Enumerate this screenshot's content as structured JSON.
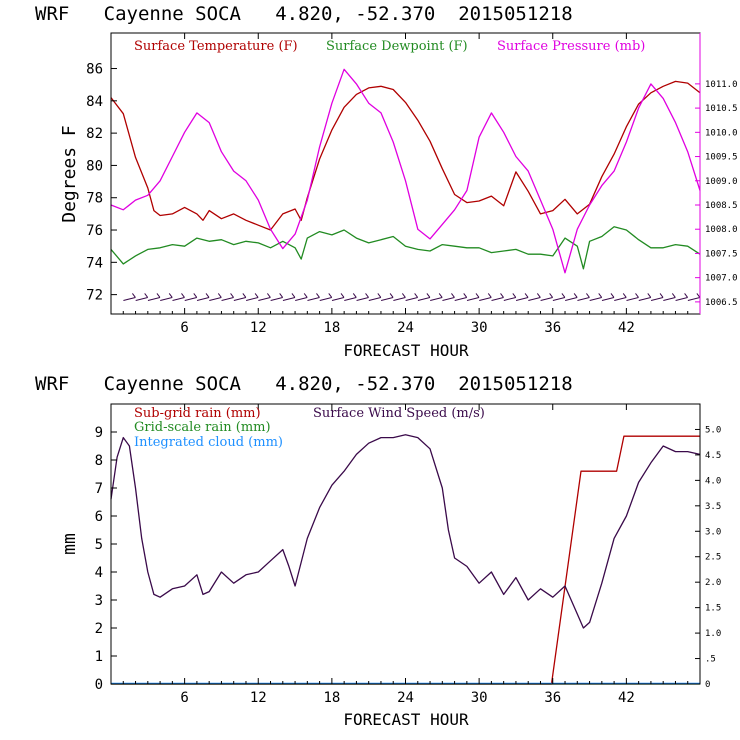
{
  "colors": {
    "temperature": "#b00000",
    "dewpoint": "#228b22",
    "pressure": "#e000e0",
    "wind": "#3a0a4a",
    "subgrid_rain": "#b00000",
    "grid_rain": "#228b22",
    "cloud": "#1e90ff"
  },
  "chart_data": [
    {
      "type": "line",
      "title": "WRF   Cayenne SOCA   4.820, -52.370  2015051218",
      "xlabel": "FORECAST HOUR",
      "ylabel": "Degrees F",
      "xlim": [
        0,
        48
      ],
      "ylim": [
        70.8,
        88.2
      ],
      "xticks": [
        6,
        12,
        18,
        24,
        30,
        36,
        42
      ],
      "yticks": [
        72,
        74,
        76,
        78,
        80,
        82,
        84,
        86
      ],
      "y2lim": [
        1006.25,
        1012.05
      ],
      "y2ticks": [
        1006.5,
        1007.0,
        1007.5,
        1008.0,
        1008.5,
        1009.0,
        1009.5,
        1010.0,
        1010.5,
        1011.0
      ],
      "y2ticklabels": [
        "1006.5",
        "1007.0",
        "1007.5",
        "1008.0",
        "1008.5",
        "1009.0",
        "1009.5",
        "1010.0",
        "1010.5",
        "1011.0"
      ],
      "legend": [
        "Surface Temperature (F)",
        "Surface Dewpoint (F)",
        "Surface Pressure (mb)"
      ],
      "series": [
        {
          "name": "Surface Temperature (F)",
          "axis": "left",
          "x": [
            0,
            1,
            2,
            3,
            3.5,
            4,
            5,
            6,
            7,
            7.5,
            8,
            9,
            10,
            11,
            12,
            13,
            14,
            15,
            15.5,
            16,
            17,
            18,
            19,
            20,
            21,
            22,
            23,
            24,
            25,
            26,
            27,
            28,
            29,
            30,
            31,
            32,
            33,
            34,
            35,
            36,
            37,
            38,
            39,
            40,
            41,
            42,
            43,
            44,
            45,
            46,
            47,
            48
          ],
          "y": [
            84.2,
            83.2,
            80.5,
            78.6,
            77.2,
            76.9,
            77.0,
            77.4,
            77.0,
            76.6,
            77.2,
            76.7,
            77.0,
            76.6,
            76.3,
            76.0,
            77.0,
            77.3,
            76.6,
            78.0,
            80.4,
            82.2,
            83.6,
            84.4,
            84.8,
            84.9,
            84.7,
            83.9,
            82.8,
            81.5,
            79.8,
            78.2,
            77.7,
            77.8,
            78.1,
            77.5,
            79.6,
            78.4,
            77.0,
            77.2,
            77.9,
            77.0,
            77.6,
            79.3,
            80.7,
            82.4,
            83.8,
            84.5,
            84.9,
            85.2,
            85.1,
            84.5
          ]
        },
        {
          "name": "Surface Dewpoint (F)",
          "axis": "left",
          "x": [
            0,
            1,
            2,
            3,
            4,
            5,
            6,
            7,
            8,
            9,
            10,
            11,
            12,
            13,
            14,
            15,
            15.5,
            16,
            17,
            18,
            19,
            20,
            21,
            22,
            23,
            24,
            25,
            26,
            27,
            28,
            29,
            30,
            31,
            32,
            33,
            34,
            35,
            36,
            37,
            38,
            38.5,
            39,
            40,
            41,
            42,
            43,
            44,
            45,
            46,
            47,
            48
          ],
          "y": [
            74.8,
            73.9,
            74.4,
            74.8,
            74.9,
            75.1,
            75.0,
            75.5,
            75.3,
            75.4,
            75.1,
            75.3,
            75.2,
            74.9,
            75.3,
            74.9,
            74.2,
            75.5,
            75.9,
            75.7,
            76.0,
            75.5,
            75.2,
            75.4,
            75.6,
            75.0,
            74.8,
            74.7,
            75.1,
            75.0,
            74.9,
            74.9,
            74.6,
            74.7,
            74.8,
            74.5,
            74.5,
            74.4,
            75.5,
            75.0,
            73.6,
            75.3,
            75.6,
            76.2,
            76.0,
            75.4,
            74.9,
            74.9,
            75.1,
            75.0,
            74.5
          ]
        },
        {
          "name": "Surface Pressure (mb)",
          "axis": "right",
          "x": [
            0,
            1,
            2,
            3,
            4,
            5,
            6,
            7,
            8,
            9,
            10,
            11,
            12,
            13,
            14,
            15,
            16,
            17,
            18,
            19,
            20,
            21,
            22,
            23,
            24,
            25,
            26,
            27,
            28,
            29,
            30,
            31,
            32,
            33,
            34,
            35,
            36,
            37,
            38,
            39,
            40,
            41,
            42,
            43,
            44,
            45,
            46,
            47,
            48
          ],
          "y": [
            1008.5,
            1008.4,
            1008.6,
            1008.7,
            1009.0,
            1009.5,
            1010.0,
            1010.4,
            1010.2,
            1009.6,
            1009.2,
            1009.0,
            1008.6,
            1008.0,
            1007.6,
            1007.9,
            1008.6,
            1009.7,
            1010.6,
            1011.3,
            1011.0,
            1010.6,
            1010.4,
            1009.8,
            1009.0,
            1008.0,
            1007.8,
            1008.1,
            1008.4,
            1008.8,
            1009.9,
            1010.4,
            1010.0,
            1009.5,
            1009.2,
            1008.6,
            1008.0,
            1007.1,
            1008.0,
            1008.5,
            1008.9,
            1009.2,
            1009.8,
            1010.5,
            1011.0,
            1010.7,
            1010.2,
            1009.6,
            1008.8
          ]
        }
      ]
    },
    {
      "type": "line",
      "title": "WRF   Cayenne SOCA   4.820, -52.370  2015051218",
      "xlabel": "FORECAST HOUR",
      "ylabel": "mm",
      "xlim": [
        0,
        48
      ],
      "ylim": [
        0,
        10
      ],
      "xticks": [
        6,
        12,
        18,
        24,
        30,
        36,
        42
      ],
      "yticks": [
        0,
        1,
        2,
        3,
        4,
        5,
        6,
        7,
        8,
        9
      ],
      "y2lim": [
        0,
        5.5
      ],
      "y2ticks": [
        0,
        0.5,
        1.0,
        1.5,
        2.0,
        2.5,
        3.0,
        3.5,
        4.0,
        4.5,
        5.0
      ],
      "y2ticklabels": [
        "0",
        ".5",
        "1.0",
        "1.5",
        "2.0",
        "2.5",
        "3.0",
        "3.5",
        "4.0",
        "4.5",
        "5.0"
      ],
      "legend": [
        "Sub-grid rain (mm)",
        "Grid-scale rain (mm)",
        "Integrated cloud (mm)",
        "Surface Wind Speed (m/s)"
      ],
      "series": [
        {
          "name": "Sub-grid rain (mm)",
          "axis": "left",
          "x": [
            0,
            35.9,
            38.3,
            41.2,
            41.8,
            48
          ],
          "y": [
            0,
            0,
            7.6,
            7.6,
            8.85,
            8.85
          ]
        },
        {
          "name": "Grid-scale rain (mm)",
          "axis": "left",
          "x": [
            0,
            48
          ],
          "y": [
            0,
            0
          ]
        },
        {
          "name": "Integrated cloud (mm)",
          "axis": "left",
          "x": [
            0,
            48
          ],
          "y": [
            0.02,
            0.02
          ]
        },
        {
          "name": "Surface Wind Speed (m/s)",
          "axis": "left",
          "x": [
            0,
            0.5,
            1,
            1.5,
            2,
            2.5,
            3,
            3.5,
            4,
            5,
            6,
            7,
            7.5,
            8,
            9,
            10,
            11,
            12,
            13,
            14,
            14.5,
            15,
            16,
            17,
            18,
            19,
            20,
            21,
            22,
            23,
            24,
            25,
            26,
            27,
            27.5,
            28,
            29,
            30,
            31,
            32,
            33,
            34,
            35,
            36,
            37,
            38,
            38.5,
            39,
            40,
            41,
            42,
            43,
            44,
            45,
            46,
            47,
            48
          ],
          "y": [
            6.6,
            8.1,
            8.8,
            8.5,
            7.0,
            5.2,
            4.0,
            3.2,
            3.1,
            3.4,
            3.5,
            3.9,
            3.2,
            3.3,
            4.0,
            3.6,
            3.9,
            4.0,
            4.4,
            4.8,
            4.2,
            3.5,
            5.2,
            6.3,
            7.1,
            7.6,
            8.2,
            8.6,
            8.8,
            8.8,
            8.9,
            8.8,
            8.4,
            7.0,
            5.5,
            4.5,
            4.2,
            3.6,
            4.0,
            3.2,
            3.8,
            3.0,
            3.4,
            3.1,
            3.5,
            2.5,
            2.0,
            2.2,
            3.6,
            5.2,
            6.0,
            7.2,
            7.9,
            8.5,
            8.3,
            8.3,
            8.2
          ]
        }
      ]
    }
  ],
  "wind_barbs": {
    "hours": [
      1.5,
      2.5,
      3.5,
      4.5,
      5.5,
      6.5,
      7.5,
      8.5,
      9.5,
      10.5,
      11.5,
      12.5,
      13.5,
      14.5,
      15.5,
      16.5,
      17.5,
      18.5,
      19.5,
      20.5,
      21.5,
      22.5,
      23.5,
      24.5,
      25.5,
      26.5,
      27.5,
      28.5,
      29.5,
      30.5,
      31.5,
      32.5,
      33.5,
      34.5,
      35.5,
      36.5,
      37.5,
      38.5,
      39.5,
      40.5,
      41.5,
      42.5,
      43.5,
      44.5,
      45.5,
      46.5,
      47.5
    ],
    "level_f": 71.7
  }
}
